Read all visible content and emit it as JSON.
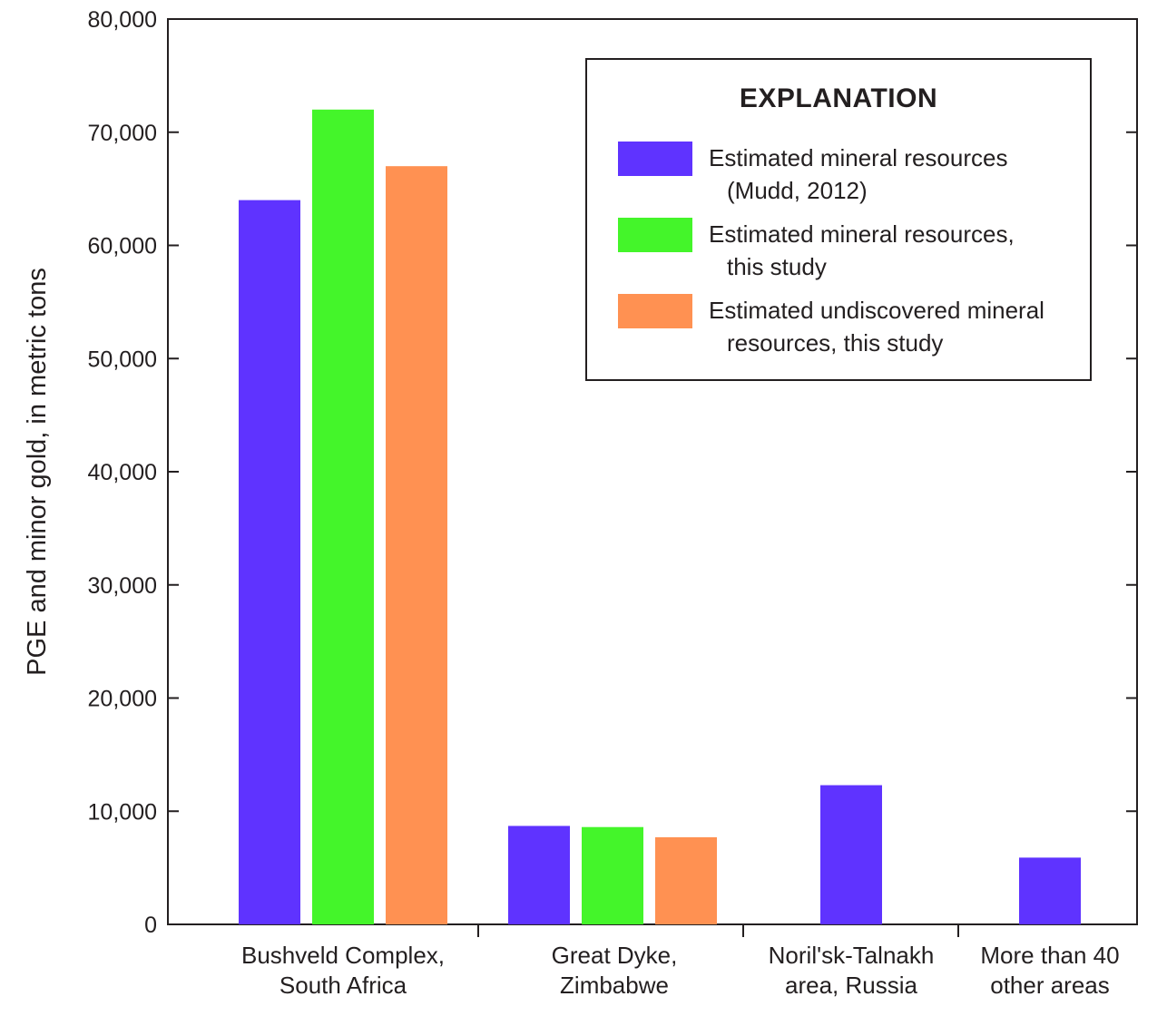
{
  "chart_data": {
    "type": "bar",
    "categories": [
      [
        "Bushveld Complex,",
        "South Africa"
      ],
      [
        "Great Dyke,",
        "Zimbabwe"
      ],
      [
        "Noril'sk-Talnakh",
        "area, Russia"
      ],
      [
        "More than 40",
        "other areas"
      ]
    ],
    "series": [
      {
        "name": "Estimated mineral resources (Mudd, 2012)",
        "color": "#5f33ff",
        "values": [
          64000,
          8700,
          12300,
          5900
        ]
      },
      {
        "name": "Estimated mineral resources, this study",
        "color": "#44f52a",
        "values": [
          72000,
          8600,
          null,
          null
        ]
      },
      {
        "name": "Estimated undiscovered mineral resources, this study",
        "color": "#ff9152",
        "values": [
          67000,
          7700,
          null,
          null
        ]
      }
    ],
    "ylabel": "PGE and minor gold, in metric tons",
    "xlabel": "",
    "ylim": [
      0,
      80000
    ],
    "yticks": [
      0,
      10000,
      20000,
      30000,
      40000,
      50000,
      60000,
      70000,
      80000
    ],
    "ytick_labels": [
      "0",
      "10,000",
      "20,000",
      "30,000",
      "40,000",
      "50,000",
      "60,000",
      "70,000",
      "80,000"
    ],
    "grid": false,
    "legend_position": "top-right"
  },
  "legend": {
    "title": "EXPLANATION",
    "items": [
      {
        "line1": "Estimated mineral resources",
        "line2": "(Mudd, 2012)",
        "color": "#5f33ff"
      },
      {
        "line1": "Estimated mineral resources,",
        "line2": "this study",
        "color": "#44f52a"
      },
      {
        "line1": "Estimated undiscovered mineral",
        "line2": "resources, this study",
        "color": "#ff9152"
      }
    ]
  }
}
